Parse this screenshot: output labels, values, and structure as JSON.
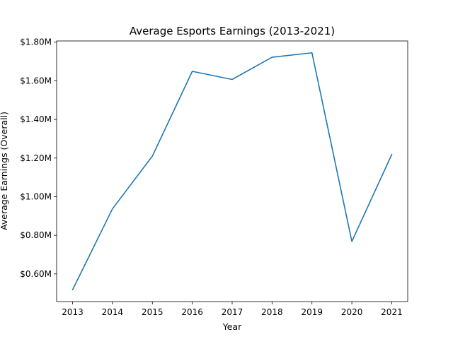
{
  "chart_data": {
    "type": "line",
    "title": "Average Esports Earnings (2013-2021)",
    "xlabel": "Year",
    "ylabel": "Average Earnings (Overall)",
    "x": [
      2013,
      2014,
      2015,
      2016,
      2017,
      2018,
      2019,
      2020,
      2021
    ],
    "series": [
      {
        "values": [
          0.518,
          0.937,
          1.21,
          1.649,
          1.607,
          1.722,
          1.745,
          0.768,
          1.218
        ]
      }
    ],
    "xticks": [
      "2013",
      "2014",
      "2015",
      "2016",
      "2017",
      "2018",
      "2019",
      "2020",
      "2021"
    ],
    "yticks": [
      {
        "value": 0.6,
        "label": "$0.60M"
      },
      {
        "value": 0.8,
        "label": "$0.80M"
      },
      {
        "value": 1.0,
        "label": "$1.00M"
      },
      {
        "value": 1.2,
        "label": "$1.20M"
      },
      {
        "value": 1.4,
        "label": "$1.40M"
      },
      {
        "value": 1.6,
        "label": "$1.60M"
      },
      {
        "value": 1.8,
        "label": "$1.80M"
      }
    ],
    "xlim": [
      2012.6,
      2021.4
    ],
    "ylim": [
      0.4567,
      1.8063
    ],
    "grid": false,
    "line_color": "#1f77b4"
  }
}
